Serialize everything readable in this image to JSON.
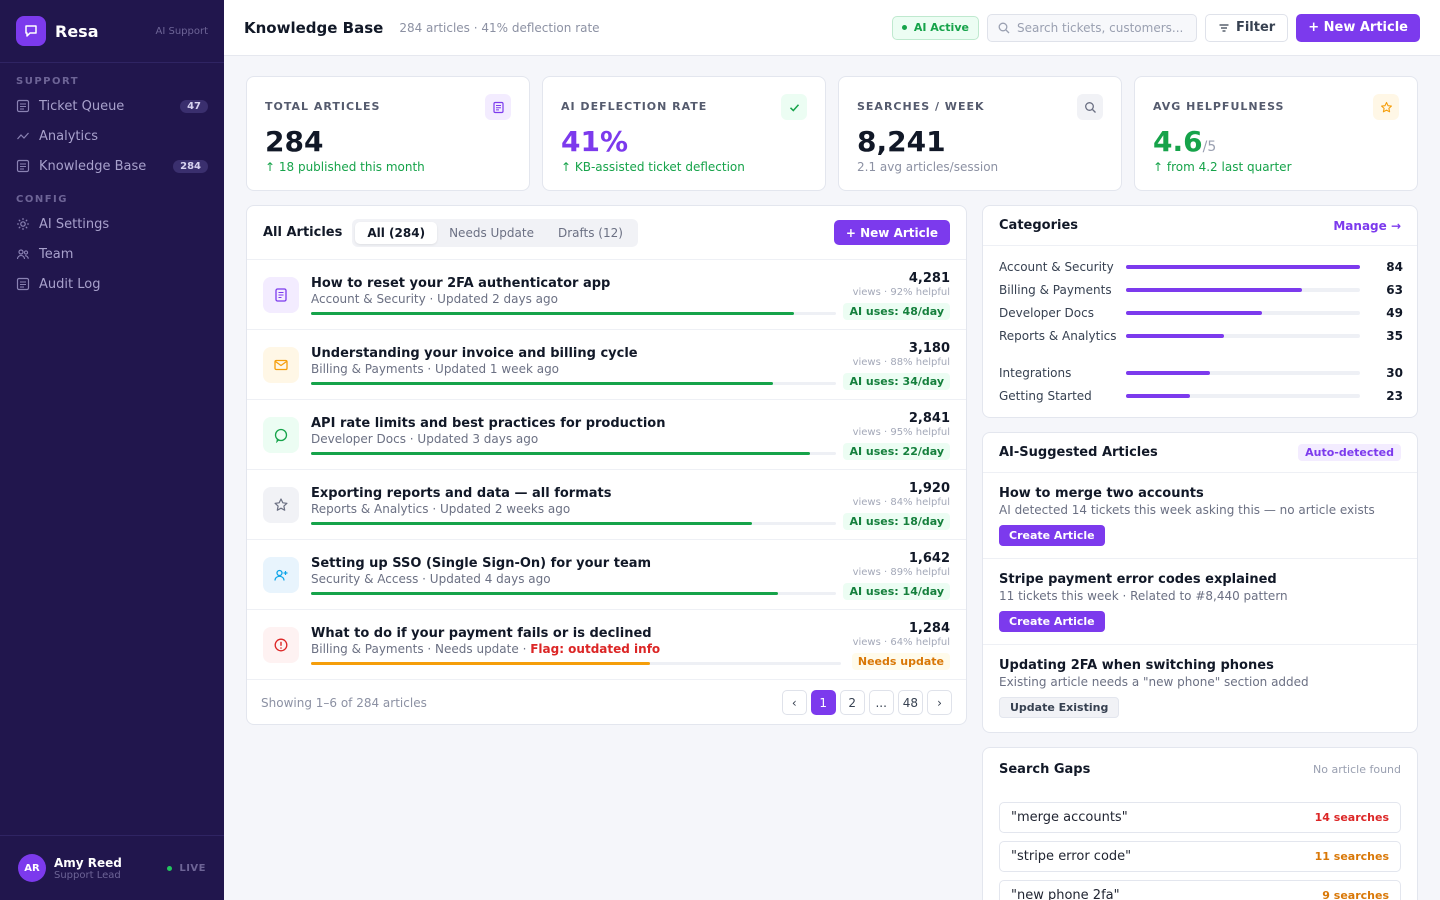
{
  "brand": {
    "name": "Resa",
    "subtitle": "AI Support"
  },
  "sidebar": {
    "sections": [
      {
        "label": "SUPPORT",
        "items": [
          {
            "label": "Ticket Queue",
            "icon": "ticket-icon",
            "badge": "47"
          },
          {
            "label": "Analytics",
            "icon": "analytics-icon",
            "badge": ""
          },
          {
            "label": "Knowledge Base",
            "icon": "book-icon",
            "badge": "284"
          }
        ]
      },
      {
        "label": "CONFIG",
        "items": [
          {
            "label": "AI Settings",
            "icon": "gear-icon",
            "badge": ""
          },
          {
            "label": "Team",
            "icon": "team-icon",
            "badge": ""
          },
          {
            "label": "Audit Log",
            "icon": "log-icon",
            "badge": ""
          }
        ]
      }
    ],
    "user": {
      "initials": "AR",
      "name": "Amy Reed",
      "role": "Support Lead",
      "status": "LIVE"
    }
  },
  "header": {
    "title": "Knowledge Base",
    "meta": "284 articles · 41% deflection rate",
    "ai_status": "AI Active",
    "search_placeholder": "Search tickets, customers...",
    "filter_label": "Filter",
    "new_article_label": "+ New Article"
  },
  "stats": [
    {
      "label": "TOTAL ARTICLES",
      "value": "284",
      "unit": "",
      "sub": "↑ 18 published this month",
      "icon": "document-icon",
      "value_color": "#111827",
      "sub_tone": "green"
    },
    {
      "label": "AI DEFLECTION RATE",
      "value": "41%",
      "unit": "",
      "sub": "↑ KB-assisted ticket deflection",
      "icon": "check-icon",
      "value_color": "#7c3aed",
      "sub_tone": "green"
    },
    {
      "label": "SEARCHES / WEEK",
      "value": "8,241",
      "unit": "",
      "sub": "2.1 avg articles/session",
      "icon": "search-icon",
      "value_color": "#111827",
      "sub_tone": "grey"
    },
    {
      "label": "AVG HELPFULNESS",
      "value": "4.6",
      "unit": "/5",
      "sub": "↑ from 4.2 last quarter",
      "icon": "star-icon",
      "value_color": "#16a34a",
      "sub_tone": "green"
    }
  ],
  "articles": {
    "title": "All Articles",
    "tabs": [
      "All (284)",
      "Needs Update",
      "Drafts (12)"
    ],
    "active_tab": 0,
    "new_label": "+ New Article",
    "rows": [
      {
        "title": "How to reset your 2FA authenticator app",
        "category": "Account & Security",
        "updated": "Updated 2 days ago",
        "flag": "",
        "views": "4,281",
        "helpful": "views · 92% helpful",
        "badge": "AI uses: 48/day",
        "badge_tone": "green",
        "icon": "document-icon",
        "progress": 0.92
      },
      {
        "title": "Understanding your invoice and billing cycle",
        "category": "Billing & Payments",
        "updated": "Updated 1 week ago",
        "flag": "",
        "views": "3,180",
        "helpful": "views · 88% helpful",
        "badge": "AI uses: 34/day",
        "badge_tone": "green",
        "icon": "mail-icon",
        "progress": 0.88
      },
      {
        "title": "API rate limits and best practices for production",
        "category": "Developer Docs",
        "updated": "Updated 3 days ago",
        "flag": "",
        "views": "2,841",
        "helpful": "views · 95% helpful",
        "badge": "AI uses: 22/day",
        "badge_tone": "green",
        "icon": "chat-icon",
        "progress": 0.95
      },
      {
        "title": "Exporting reports and data — all formats",
        "category": "Reports & Analytics",
        "updated": "Updated 2 weeks ago",
        "flag": "",
        "views": "1,920",
        "helpful": "views · 84% helpful",
        "badge": "AI uses: 18/day",
        "badge_tone": "green",
        "icon": "star-icon",
        "progress": 0.84
      },
      {
        "title": "Setting up SSO (Single Sign-On) for your team",
        "category": "Security & Access",
        "updated": "Updated 4 days ago",
        "flag": "",
        "views": "1,642",
        "helpful": "views · 89% helpful",
        "badge": "AI uses: 14/day",
        "badge_tone": "green",
        "icon": "user-plus-icon",
        "progress": 0.89
      },
      {
        "title": "What to do if your payment fails or is declined",
        "category": "Billing & Payments",
        "updated": "Needs update",
        "flag": "Flag: outdated info",
        "views": "1,284",
        "helpful": "views · 64% helpful",
        "badge": "Needs update",
        "badge_tone": "orange",
        "icon": "alert-icon",
        "progress": 0.64
      }
    ],
    "showing": "Showing 1–6 of 284 articles",
    "pages": [
      "‹",
      "1",
      "2",
      "...",
      "48",
      "›"
    ],
    "active_page": "1"
  },
  "categories": {
    "title": "Categories",
    "manage_label": "Manage →",
    "items": [
      {
        "name": "Account & Security",
        "count": 84
      },
      {
        "name": "Billing & Payments",
        "count": 63
      },
      {
        "name": "Developer Docs",
        "count": 49
      },
      {
        "name": "Reports & Analytics",
        "count": 35
      },
      {
        "name": "Integrations",
        "count": 30
      },
      {
        "name": "Getting Started",
        "count": 23
      }
    ]
  },
  "suggested": {
    "title": "AI-Suggested Articles",
    "tag": "Auto-detected",
    "items": [
      {
        "title": "How to merge two accounts",
        "desc": "AI detected 14 tickets this week asking this — no article exists",
        "action": "Create Article",
        "tone": "purple"
      },
      {
        "title": "Stripe payment error codes explained",
        "desc": "11 tickets this week · Related to #8,440 pattern",
        "action": "Create Article",
        "tone": "purple"
      },
      {
        "title": "Updating 2FA when switching phones",
        "desc": "Existing article needs a \"new phone\" section added",
        "action": "Update Existing",
        "tone": "grey"
      }
    ]
  },
  "gaps": {
    "title": "Search Gaps",
    "note": "No article found",
    "items": [
      {
        "query": "\"merge accounts\"",
        "count": "14 searches",
        "color": "#dc2626"
      },
      {
        "query": "\"stripe error code\"",
        "count": "11 searches",
        "color": "#d97706"
      },
      {
        "query": "\"new phone 2fa\"",
        "count": "9 searches",
        "color": "#d97706"
      }
    ]
  },
  "colors": {
    "accent": "#7c3aed",
    "sidebar": "#21164d",
    "success": "#16a34a",
    "warning": "#d97706",
    "danger": "#dc2626"
  }
}
